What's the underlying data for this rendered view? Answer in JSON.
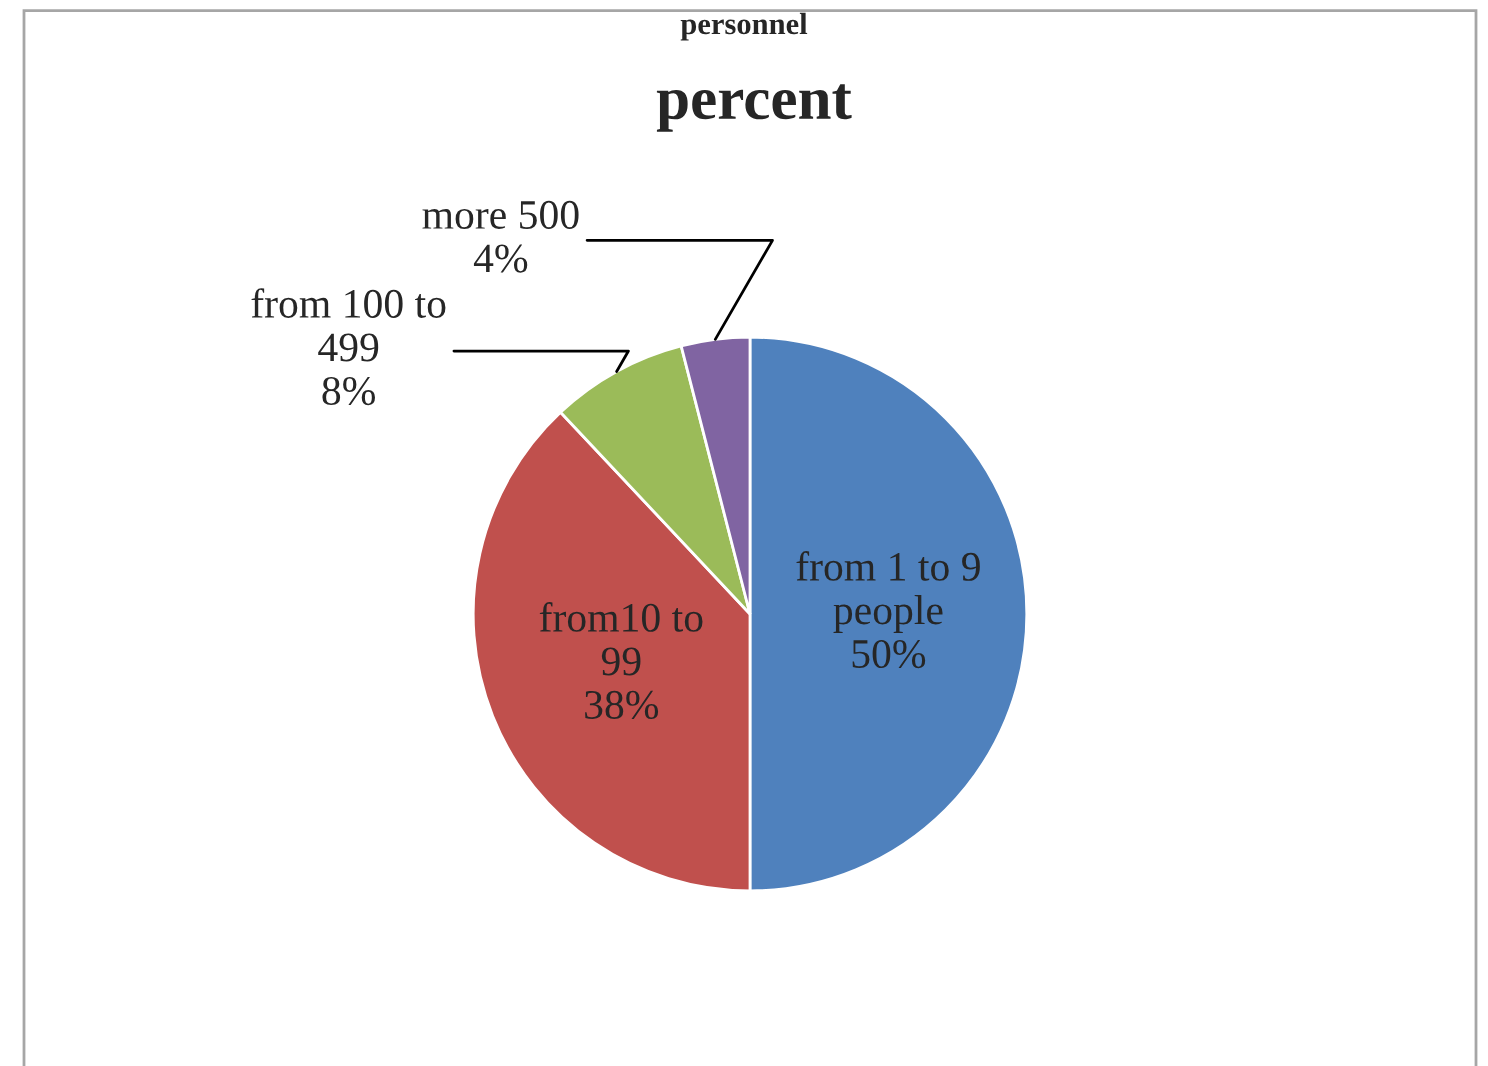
{
  "chart_data": {
    "type": "pie",
    "title": "personnel",
    "subtitle": "percent",
    "categories": [
      "from 1 to 9 people",
      "from10 to 99",
      "from 100 to 499",
      "more 500"
    ],
    "values": [
      50,
      38,
      8,
      4
    ],
    "colors": [
      "#4f81bd",
      "#c0504d",
      "#9bbb59",
      "#8064a2"
    ],
    "value_labels": [
      "50%",
      "38%",
      "8%",
      "4%"
    ],
    "legend": false
  }
}
